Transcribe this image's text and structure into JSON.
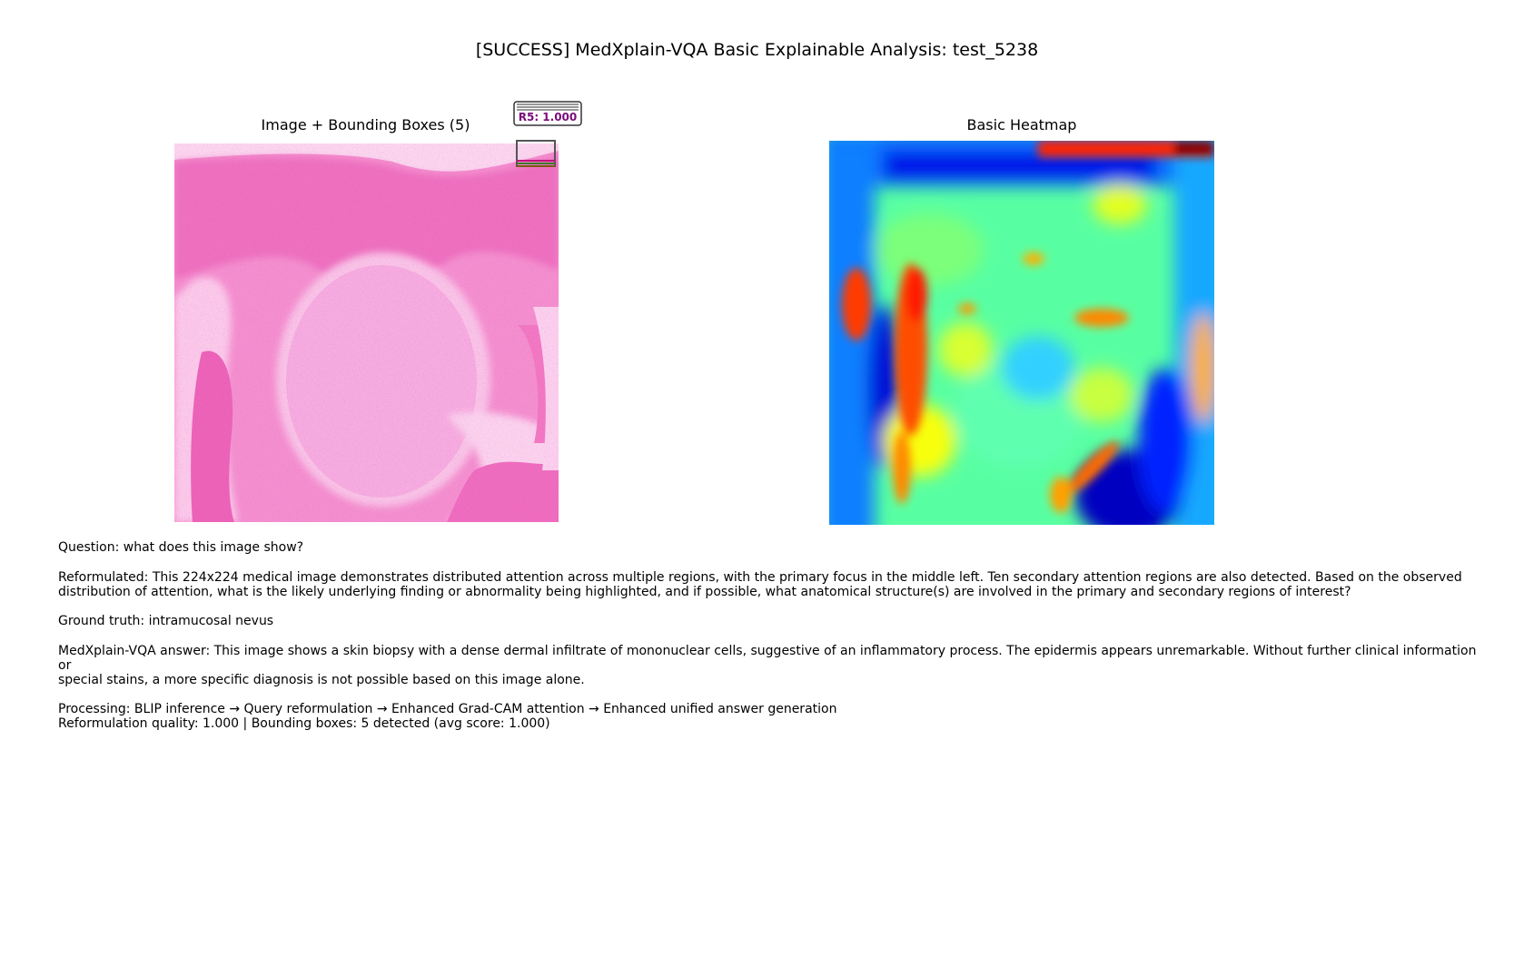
{
  "title": "[SUCCESS] MedXplain-VQA Basic  Explainable Analysis: test_5238",
  "panels": {
    "left_title": "Image + Bounding Boxes (5)",
    "right_title": "Basic Heatmap",
    "bbox_label": "R5: 1.000"
  },
  "colors": {
    "histology_pink": "#f07cc6",
    "bbox_label_text": "#7a0a7a",
    "heatmap_colormap": "jet"
  },
  "text": {
    "question": "Question: what does this image show?",
    "reformulated_1": "Reformulated: This 224x224 medical image demonstrates distributed attention across multiple regions, with the primary focus in the middle left. Ten secondary attention regions are also detected.  Based on the observed",
    "reformulated_2": "distribution of attention, what is the likely underlying finding or abnormality being highlighted, and if possible, what anatomical structure(s) are involved in the primary and secondary regions of interest?",
    "ground_truth": "Ground truth: intramucosal nevus",
    "answer_1": "MedXplain-VQA answer: This image shows a skin biopsy with a dense dermal infiltrate of mononuclear cells, suggestive of an inflammatory process.  The epidermis appears unremarkable. Without further clinical information or",
    "answer_2": "special stains, a more specific diagnosis is not possible based on this image alone.",
    "processing": "Processing: BLIP inference → Query reformulation → Enhanced Grad-CAM attention → Enhanced unified answer generation",
    "quality": "Reformulation quality: 1.000 | Bounding boxes: 5 detected (avg score: 1.000)"
  }
}
